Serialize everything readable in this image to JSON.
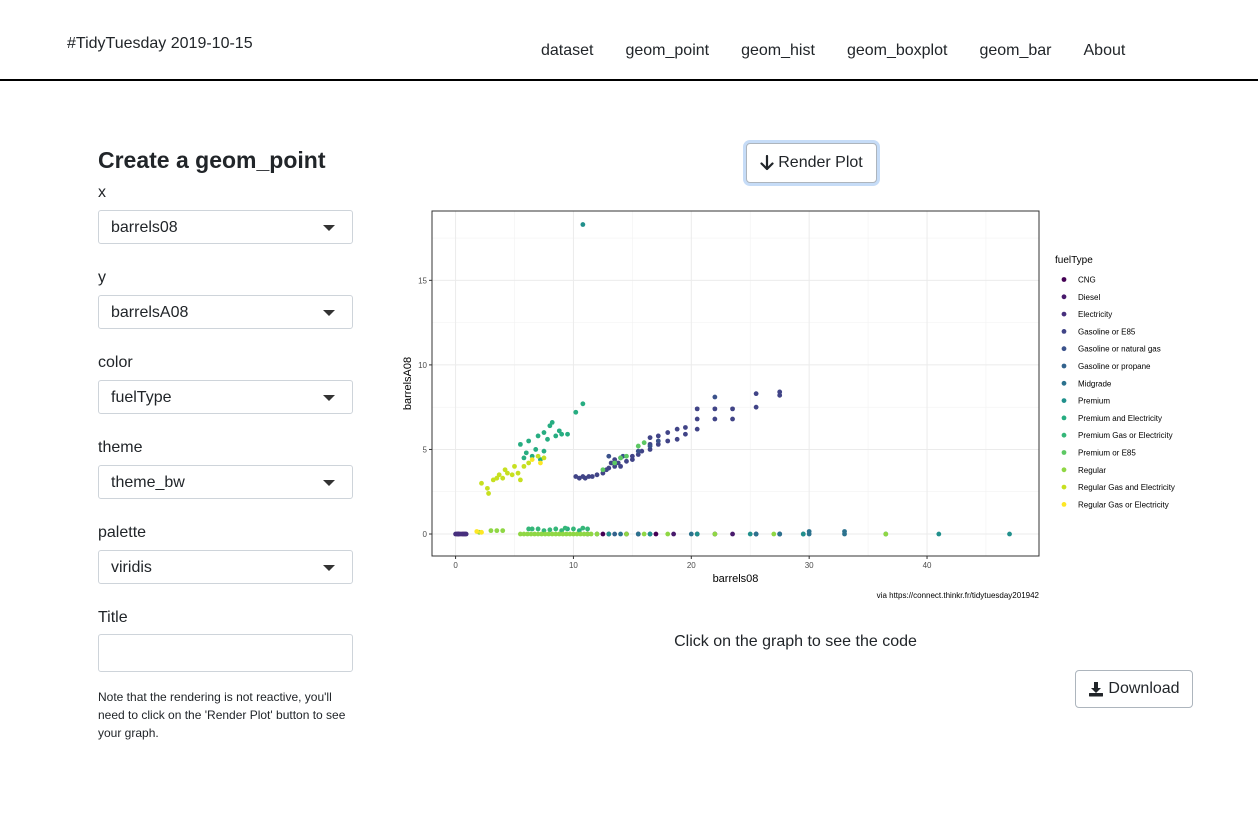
{
  "navbar": {
    "brand": "#TidyTuesday 2019-10-15",
    "links": [
      "dataset",
      "geom_point",
      "geom_hist",
      "geom_boxplot",
      "geom_bar",
      "About"
    ]
  },
  "sidebar": {
    "heading": "Create a geom_point",
    "fields": [
      {
        "label": "x",
        "value": "barrels08"
      },
      {
        "label": "y",
        "value": "barrelsA08"
      },
      {
        "label": "color",
        "value": "fuelType"
      },
      {
        "label": "theme",
        "value": "theme_bw"
      },
      {
        "label": "palette",
        "value": "viridis"
      }
    ],
    "title_label": "Title",
    "title_value": "",
    "note": "Note that the rendering is not reactive, you'll need to click on the 'Render Plot' button to see your graph."
  },
  "main": {
    "render_label": "Render Plot",
    "click_note": "Click on the graph to see the code",
    "download_label": "Download",
    "caption": "via https://connect.thinkr.fr/tidytuesday201942"
  },
  "chart_data": {
    "type": "scatter",
    "xlabel": "barrels08",
    "ylabel": "barrelsA08",
    "xlim": [
      -2,
      49.5
    ],
    "ylim": [
      -1.3,
      19.1
    ],
    "xticks": [
      0,
      10,
      20,
      30,
      40
    ],
    "yticks": [
      0,
      5,
      10,
      15
    ],
    "grid": true,
    "legend": {
      "title": "fuelType",
      "position": "right"
    },
    "series": [
      {
        "name": "CNG",
        "color": "#440154",
        "points": [
          [
            0.2,
            0
          ],
          [
            0.6,
            0
          ],
          [
            12.5,
            0
          ],
          [
            14.5,
            0
          ],
          [
            17,
            0
          ]
        ]
      },
      {
        "name": "Diesel",
        "color": "#481A6C",
        "points": [
          [
            0.3,
            0
          ],
          [
            0.8,
            0
          ],
          [
            11.2,
            0
          ],
          [
            13,
            0
          ],
          [
            15.5,
            0
          ],
          [
            18.5,
            0
          ],
          [
            20.5,
            0
          ],
          [
            22,
            0
          ],
          [
            23.5,
            0
          ],
          [
            25.5,
            0
          ],
          [
            27.5,
            0
          ]
        ]
      },
      {
        "name": "Electricity",
        "color": "#472F7D",
        "points": [
          [
            0,
            0
          ],
          [
            0.1,
            0
          ],
          [
            0.25,
            0
          ],
          [
            0.45,
            0
          ],
          [
            0.7,
            0
          ],
          [
            0.9,
            0
          ]
        ]
      },
      {
        "name": "Gasoline or E85",
        "color": "#414487",
        "points": [
          [
            10.2,
            3.4
          ],
          [
            10.5,
            3.3
          ],
          [
            10.8,
            3.4
          ],
          [
            11,
            3.3
          ],
          [
            11.3,
            3.4
          ],
          [
            11.6,
            3.4
          ],
          [
            12,
            3.5
          ],
          [
            12.5,
            3.6
          ],
          [
            12.8,
            3.8
          ],
          [
            13,
            3.9
          ],
          [
            13.2,
            4.2
          ],
          [
            13.5,
            4.0
          ],
          [
            13.5,
            4.4
          ],
          [
            13.8,
            4.2
          ],
          [
            14,
            4.5
          ],
          [
            14,
            4.0
          ],
          [
            14.5,
            4.3
          ],
          [
            15,
            4.6
          ],
          [
            15,
            4.4
          ],
          [
            15.5,
            4.7
          ],
          [
            15.8,
            4.9
          ],
          [
            16.5,
            5.0
          ],
          [
            16.5,
            5.3
          ],
          [
            16.5,
            5.7
          ],
          [
            17.2,
            5.3
          ],
          [
            17.2,
            5.8
          ],
          [
            18,
            5.5
          ],
          [
            18,
            6.0
          ],
          [
            18.8,
            5.6
          ],
          [
            18.8,
            6.2
          ],
          [
            19.5,
            5.9
          ],
          [
            19.5,
            6.3
          ],
          [
            20.5,
            6.2
          ],
          [
            20.5,
            6.8
          ],
          [
            20.5,
            7.4
          ],
          [
            22,
            6.8
          ],
          [
            22,
            7.4
          ],
          [
            23.5,
            6.8
          ],
          [
            23.5,
            7.4
          ],
          [
            25.5,
            7.5
          ],
          [
            25.5,
            8.3
          ],
          [
            27.5,
            8.2
          ],
          [
            27.5,
            8.4
          ]
        ]
      },
      {
        "name": "Gasoline or natural gas",
        "color": "#3B528B",
        "points": [
          [
            13,
            4.6
          ],
          [
            14.2,
            4.6
          ],
          [
            15.5,
            4.9
          ],
          [
            16.5,
            5.2
          ],
          [
            17.2,
            5.5
          ],
          [
            22,
            8.1
          ]
        ]
      },
      {
        "name": "Gasoline or propane",
        "color": "#33638D",
        "points": [
          [
            12,
            0
          ],
          [
            13.5,
            0
          ],
          [
            16.5,
            0
          ],
          [
            27.5,
            0
          ],
          [
            29.5,
            0
          ]
        ]
      },
      {
        "name": "Midgrade",
        "color": "#2C728E",
        "points": [
          [
            14,
            0
          ],
          [
            15.5,
            0
          ],
          [
            20,
            0
          ],
          [
            25.5,
            0
          ],
          [
            27.5,
            0
          ],
          [
            30,
            0
          ],
          [
            30,
            0.15
          ],
          [
            33,
            0
          ],
          [
            33,
            0.15
          ]
        ]
      },
      {
        "name": "Premium",
        "color": "#21908C",
        "points": [
          [
            10.8,
            18.3
          ],
          [
            13,
            0
          ],
          [
            16.5,
            0
          ],
          [
            20.5,
            0
          ],
          [
            25,
            0
          ],
          [
            29.5,
            0
          ],
          [
            36.5,
            0
          ],
          [
            41,
            0
          ],
          [
            47,
            0
          ]
        ]
      },
      {
        "name": "Premium and Electricity",
        "color": "#27AD81",
        "points": [
          [
            5.5,
            5.3
          ],
          [
            5.8,
            4.5
          ],
          [
            6,
            4.8
          ],
          [
            6.2,
            5.5
          ],
          [
            6.5,
            4.6
          ],
          [
            6.8,
            5.0
          ],
          [
            7,
            5.8
          ],
          [
            7.2,
            4.4
          ],
          [
            7.5,
            4.9
          ],
          [
            7.5,
            6.0
          ],
          [
            7.8,
            5.6
          ],
          [
            8,
            6.4
          ],
          [
            8.2,
            6.6
          ],
          [
            8.5,
            5.8
          ],
          [
            8.8,
            6.1
          ],
          [
            9,
            5.9
          ],
          [
            9.5,
            5.9
          ],
          [
            10.2,
            7.2
          ],
          [
            10.8,
            7.7
          ],
          [
            9.5,
            0.3
          ],
          [
            10.5,
            0.2
          ]
        ]
      },
      {
        "name": "Premium Gas or Electricity",
        "color": "#35B779",
        "points": [
          [
            6.2,
            0.3
          ],
          [
            6.5,
            0.3
          ],
          [
            7,
            0.3
          ],
          [
            7.5,
            0.2
          ],
          [
            8,
            0.25
          ],
          [
            8.5,
            0.3
          ],
          [
            9,
            0.2
          ],
          [
            9.3,
            0.35
          ],
          [
            10,
            0.3
          ],
          [
            10.8,
            0.35
          ],
          [
            11.2,
            0.3
          ]
        ]
      },
      {
        "name": "Premium or E85",
        "color": "#5DC863",
        "points": [
          [
            12.5,
            3.8
          ],
          [
            13.5,
            4.2
          ],
          [
            14,
            4.5
          ],
          [
            14.5,
            4.6
          ],
          [
            15.5,
            5.2
          ],
          [
            16,
            5.4
          ]
        ]
      },
      {
        "name": "Regular",
        "color": "#8FD744",
        "points": [
          [
            2,
            0.1
          ],
          [
            3,
            0.2
          ],
          [
            3.5,
            0.2
          ],
          [
            4,
            0.2
          ],
          [
            5.5,
            0
          ],
          [
            5.8,
            0
          ],
          [
            6.1,
            0
          ],
          [
            6.4,
            0
          ],
          [
            6.7,
            0
          ],
          [
            7,
            0
          ],
          [
            7.3,
            0
          ],
          [
            7.6,
            0
          ],
          [
            7.9,
            0
          ],
          [
            8.2,
            0
          ],
          [
            8.5,
            0
          ],
          [
            8.8,
            0
          ],
          [
            9.1,
            0
          ],
          [
            9.4,
            0
          ],
          [
            9.7,
            0
          ],
          [
            10,
            0
          ],
          [
            10.3,
            0
          ],
          [
            10.6,
            0
          ],
          [
            10.9,
            0
          ],
          [
            11.2,
            0
          ],
          [
            11.5,
            0
          ],
          [
            12,
            0
          ],
          [
            14.5,
            0
          ],
          [
            16,
            0
          ],
          [
            18,
            0
          ],
          [
            22,
            0
          ],
          [
            27,
            0
          ],
          [
            36.5,
            0
          ]
        ]
      },
      {
        "name": "Regular Gas and Electricity",
        "color": "#C7E020",
        "points": [
          [
            2.2,
            3.0
          ],
          [
            2.7,
            2.7
          ],
          [
            2.8,
            2.4
          ],
          [
            3.2,
            3.2
          ],
          [
            3.5,
            3.3
          ],
          [
            3.7,
            3.5
          ],
          [
            4.0,
            3.3
          ],
          [
            4.2,
            3.8
          ],
          [
            4.4,
            3.6
          ],
          [
            4.8,
            3.5
          ],
          [
            5.0,
            4.0
          ],
          [
            5.3,
            3.6
          ],
          [
            5.5,
            3.2
          ],
          [
            5.8,
            4.0
          ],
          [
            6.2,
            4.2
          ],
          [
            7,
            4.6
          ],
          [
            7.5,
            4.5
          ]
        ]
      },
      {
        "name": "Regular Gas or Electricity",
        "color": "#FDE725",
        "points": [
          [
            1.8,
            0.15
          ],
          [
            2.2,
            0.1
          ],
          [
            6.5,
            4.4
          ],
          [
            7.2,
            4.2
          ]
        ]
      }
    ]
  }
}
